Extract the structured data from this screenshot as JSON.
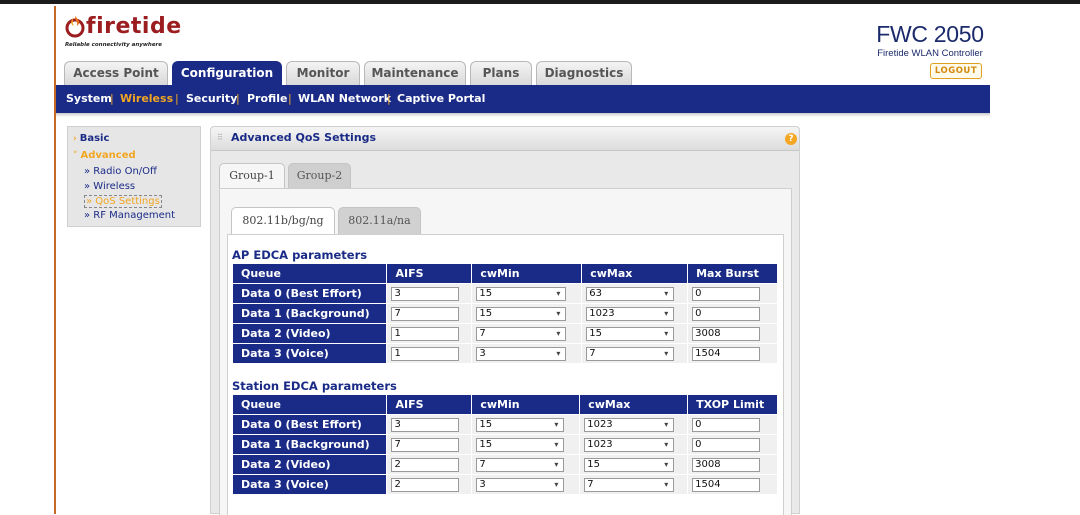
{
  "branding": {
    "logo_text": "firetide",
    "tagline": "Reliable connectivity anywhere",
    "product_name": "FWC 2050",
    "product_subtitle": "Firetide WLAN Controller",
    "logout_label": "LOGOUT"
  },
  "main_tabs": [
    {
      "label": "Access Point",
      "active": false
    },
    {
      "label": "Configuration",
      "active": true
    },
    {
      "label": "Monitor",
      "active": false
    },
    {
      "label": "Maintenance",
      "active": false
    },
    {
      "label": "Plans",
      "active": false
    },
    {
      "label": "Diagnostics",
      "active": false
    }
  ],
  "sub_nav": [
    {
      "label": "System",
      "active": false
    },
    {
      "label": "Wireless",
      "active": true
    },
    {
      "label": "Security",
      "active": false
    },
    {
      "label": "Profile",
      "active": false
    },
    {
      "label": "WLAN Network",
      "active": false
    },
    {
      "label": "Captive Portal",
      "active": false
    }
  ],
  "side_menu": {
    "basic": "Basic",
    "advanced": "Advanced",
    "items": [
      {
        "label": "» Radio On/Off",
        "active": false
      },
      {
        "label": "» Wireless",
        "active": false
      },
      {
        "label": "» QoS Settings",
        "active": true
      },
      {
        "label": "» RF Management",
        "active": false
      }
    ]
  },
  "panel": {
    "title": "Advanced QoS Settings",
    "help_glyph": "?",
    "group_tabs": [
      "Group-1",
      "Group-2"
    ],
    "band_tabs": [
      "802.11b/bg/ng",
      "802.11a/na"
    ]
  },
  "ap_edca": {
    "title": "AP EDCA parameters",
    "headers": [
      "Queue",
      "AIFS",
      "cwMin",
      "cwMax",
      "Max Burst"
    ],
    "rows": [
      {
        "queue": "Data 0 (Best Effort)",
        "aifs": "3",
        "cwmin": "15",
        "cwmax": "63",
        "last": "0"
      },
      {
        "queue": "Data 1 (Background)",
        "aifs": "7",
        "cwmin": "15",
        "cwmax": "1023",
        "last": "0"
      },
      {
        "queue": "Data 2 (Video)",
        "aifs": "1",
        "cwmin": "7",
        "cwmax": "15",
        "last": "3008"
      },
      {
        "queue": "Data 3 (Voice)",
        "aifs": "1",
        "cwmin": "3",
        "cwmax": "7",
        "last": "1504"
      }
    ]
  },
  "station_edca": {
    "title": "Station EDCA parameters",
    "headers": [
      "Queue",
      "AIFS",
      "cwMin",
      "cwMax",
      "TXOP Limit"
    ],
    "rows": [
      {
        "queue": "Data 0 (Best Effort)",
        "aifs": "3",
        "cwmin": "15",
        "cwmax": "1023",
        "last": "0"
      },
      {
        "queue": "Data 1 (Background)",
        "aifs": "7",
        "cwmin": "15",
        "cwmax": "1023",
        "last": "0"
      },
      {
        "queue": "Data 2 (Video)",
        "aifs": "2",
        "cwmin": "7",
        "cwmax": "15",
        "last": "3008"
      },
      {
        "queue": "Data 3 (Voice)",
        "aifs": "2",
        "cwmin": "3",
        "cwmax": "7",
        "last": "1504"
      }
    ]
  },
  "colors": {
    "nav_blue": "#1a2b87",
    "accent_orange": "#f2a521",
    "brand_red": "#9b1d20"
  }
}
